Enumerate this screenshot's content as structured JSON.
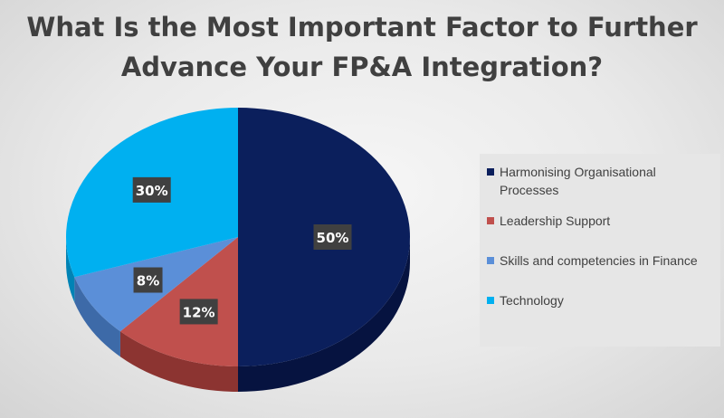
{
  "title_line1": "What Is the Most Important Factor to Further",
  "title_line2": "Advance Your FP&A Integration?",
  "chart_data": {
    "type": "pie",
    "title": "What Is the Most Important Factor to Further Advance Your FP&A Integration?",
    "slices": [
      {
        "label": "Harmonising Organisational Processes",
        "value": 50,
        "data_label": "50%",
        "color": "#0b1f5c",
        "side_color": "#061340"
      },
      {
        "label": "Leadership Support",
        "value": 12,
        "data_label": "12%",
        "color": "#c0504d",
        "side_color": "#8c3431"
      },
      {
        "label": "Skills and competencies in Finance",
        "value": 8,
        "data_label": "8%",
        "color": "#5b8fd8",
        "side_color": "#3d6aa8"
      },
      {
        "label": "Technology",
        "value": 30,
        "data_label": "30%",
        "color": "#00b0f0",
        "side_color": "#0083b5"
      }
    ],
    "legend_position": "right",
    "three_d": true
  }
}
